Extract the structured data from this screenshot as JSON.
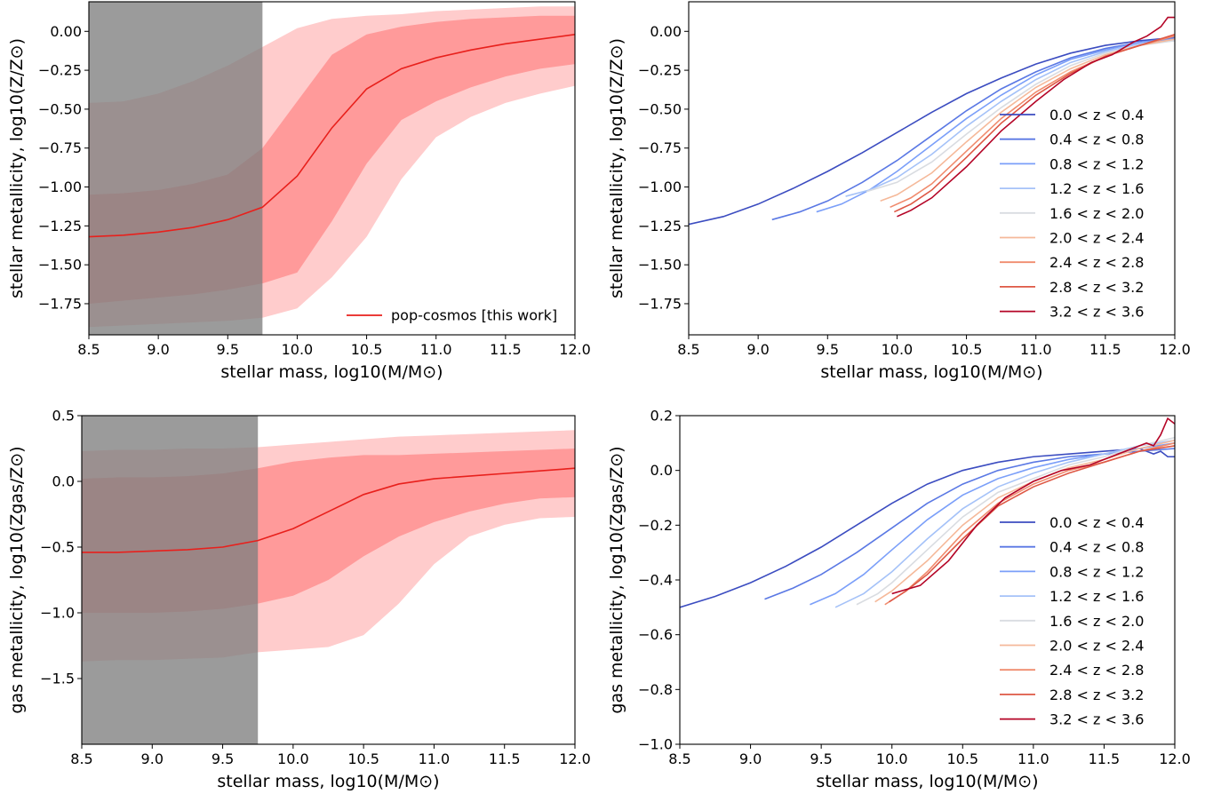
{
  "colors": {
    "main": "#e8201c",
    "band_inner": "#ff9a9a",
    "band_outer": "#ffcccc",
    "mask": "#7f7f7f",
    "bins": [
      "#3b4cc0",
      "#5a78e4",
      "#7b9ff9",
      "#a5c2f8",
      "#d9dce1",
      "#f5b99a",
      "#f08b6d",
      "#de5845",
      "#b40426"
    ]
  },
  "chart_data": [
    {
      "type": "area",
      "panel": "top-left",
      "xlabel": "stellar mass, log10(M/M⊙)",
      "ylabel": "stellar metallicity, log10(Z/Z⊙)",
      "xlim": [
        8.5,
        12.0
      ],
      "ylim": [
        -1.95,
        0.19
      ],
      "xticks": [
        8.5,
        9.0,
        9.5,
        10.0,
        10.5,
        11.0,
        11.5,
        12.0
      ],
      "yticks": [
        0.0,
        -0.25,
        -0.5,
        -0.75,
        -1.0,
        -1.25,
        -1.5,
        -1.75
      ],
      "tick_labels_x": [
        "8.5",
        "9.0",
        "9.5",
        "10.0",
        "10.5",
        "11.0",
        "11.5",
        "12.0"
      ],
      "tick_labels_y": [
        "0.00",
        "−0.25",
        "−0.50",
        "−0.75",
        "−1.00",
        "−1.25",
        "−1.50",
        "−1.75"
      ],
      "mask_range": [
        8.5,
        9.75
      ],
      "legend": {
        "position": "lower-right",
        "label": "pop-cosmos [this work]"
      },
      "x": [
        8.5,
        8.75,
        9.0,
        9.25,
        9.5,
        9.75,
        10.0,
        10.25,
        10.5,
        10.75,
        11.0,
        11.25,
        11.5,
        11.75,
        12.0
      ],
      "median": [
        -1.32,
        -1.31,
        -1.29,
        -1.26,
        -1.21,
        -1.13,
        -0.93,
        -0.62,
        -0.37,
        -0.24,
        -0.17,
        -0.12,
        -0.08,
        -0.05,
        -0.02
      ],
      "inner_upper": [
        -1.05,
        -1.04,
        -1.02,
        -0.98,
        -0.92,
        -0.75,
        -0.45,
        -0.15,
        -0.02,
        0.03,
        0.06,
        0.08,
        0.09,
        0.1,
        0.1
      ],
      "inner_lower": [
        -1.75,
        -1.73,
        -1.71,
        -1.69,
        -1.66,
        -1.62,
        -1.55,
        -1.22,
        -0.85,
        -0.57,
        -0.45,
        -0.36,
        -0.29,
        -0.24,
        -0.21
      ],
      "outer_upper": [
        -0.46,
        -0.45,
        -0.4,
        -0.32,
        -0.22,
        -0.1,
        0.02,
        0.08,
        0.1,
        0.11,
        0.13,
        0.14,
        0.15,
        0.16,
        0.16
      ],
      "outer_lower": [
        -1.9,
        -1.89,
        -1.88,
        -1.87,
        -1.86,
        -1.84,
        -1.78,
        -1.58,
        -1.32,
        -0.95,
        -0.68,
        -0.55,
        -0.46,
        -0.4,
        -0.35
      ]
    },
    {
      "type": "line",
      "panel": "top-right",
      "xlabel": "stellar mass, log10(M/M⊙)",
      "ylabel": "stellar metallicity, log10(Z/Z⊙)",
      "xlim": [
        8.5,
        12.0
      ],
      "ylim": [
        -1.95,
        0.19
      ],
      "xticks": [
        8.5,
        9.0,
        9.5,
        10.0,
        10.5,
        11.0,
        11.5,
        12.0
      ],
      "yticks": [
        0.0,
        -0.25,
        -0.5,
        -0.75,
        -1.0,
        -1.25,
        -1.5,
        -1.75
      ],
      "tick_labels_x": [
        "8.5",
        "9.0",
        "9.5",
        "10.0",
        "10.5",
        "11.0",
        "11.5",
        "12.0"
      ],
      "tick_labels_y": [
        "0.00",
        "−0.25",
        "−0.50",
        "−0.75",
        "−1.00",
        "−1.25",
        "−1.50",
        "−1.75"
      ],
      "legend": {
        "position": "center-right"
      },
      "series": [
        {
          "name": "0.0 < z < 0.4",
          "x": [
            8.5,
            8.75,
            9.0,
            9.25,
            9.5,
            9.75,
            10.0,
            10.25,
            10.5,
            10.75,
            11.0,
            11.25,
            11.5,
            11.75,
            12.0
          ],
          "y": [
            -1.24,
            -1.19,
            -1.11,
            -1.01,
            -0.9,
            -0.78,
            -0.65,
            -0.52,
            -0.4,
            -0.3,
            -0.21,
            -0.14,
            -0.09,
            -0.06,
            -0.04
          ]
        },
        {
          "name": "0.4 < z < 0.8",
          "x": [
            9.1,
            9.3,
            9.5,
            9.75,
            10.0,
            10.25,
            10.5,
            10.75,
            11.0,
            11.25,
            11.5,
            11.75,
            12.0
          ],
          "y": [
            -1.21,
            -1.16,
            -1.09,
            -0.97,
            -0.83,
            -0.67,
            -0.51,
            -0.37,
            -0.26,
            -0.17,
            -0.11,
            -0.07,
            -0.04
          ]
        },
        {
          "name": "0.8 < z < 1.2",
          "x": [
            9.42,
            9.6,
            9.8,
            10.0,
            10.25,
            10.5,
            10.75,
            11.0,
            11.25,
            11.5,
            11.75,
            12.0
          ],
          "y": [
            -1.16,
            -1.11,
            -1.02,
            -0.9,
            -0.73,
            -0.56,
            -0.41,
            -0.28,
            -0.18,
            -0.12,
            -0.07,
            -0.05
          ]
        },
        {
          "name": "1.2 < z < 1.6",
          "x": [
            9.63,
            9.8,
            10.0,
            10.25,
            10.5,
            10.75,
            11.0,
            11.25,
            11.5,
            11.75,
            12.0
          ],
          "y": [
            -1.06,
            -1.02,
            -0.94,
            -0.79,
            -0.61,
            -0.45,
            -0.31,
            -0.2,
            -0.13,
            -0.08,
            -0.06
          ]
        },
        {
          "name": "1.6 < z < 2.0",
          "x": [
            9.78,
            10.0,
            10.25,
            10.5,
            10.75,
            11.0,
            11.25,
            11.5,
            11.75,
            12.0
          ],
          "y": [
            -1.03,
            -0.97,
            -0.84,
            -0.66,
            -0.49,
            -0.34,
            -0.22,
            -0.14,
            -0.09,
            -0.06
          ]
        },
        {
          "name": "2.0 < z < 2.4",
          "x": [
            9.88,
            10.0,
            10.25,
            10.5,
            10.75,
            11.0,
            11.25,
            11.5,
            11.75,
            12.0
          ],
          "y": [
            -1.09,
            -1.05,
            -0.91,
            -0.71,
            -0.52,
            -0.36,
            -0.24,
            -0.15,
            -0.09,
            -0.05
          ]
        },
        {
          "name": "2.4 < z < 2.8",
          "x": [
            9.95,
            10.1,
            10.25,
            10.5,
            10.75,
            11.0,
            11.25,
            11.5,
            11.75,
            12.0
          ],
          "y": [
            -1.13,
            -1.07,
            -0.98,
            -0.77,
            -0.56,
            -0.39,
            -0.26,
            -0.16,
            -0.09,
            -0.03
          ]
        },
        {
          "name": "2.8 < z < 3.2",
          "x": [
            9.98,
            10.1,
            10.25,
            10.5,
            10.75,
            11.0,
            11.25,
            11.5,
            11.75,
            12.0
          ],
          "y": [
            -1.16,
            -1.11,
            -1.02,
            -0.81,
            -0.59,
            -0.41,
            -0.27,
            -0.16,
            -0.09,
            -0.02
          ]
        },
        {
          "name": "3.2 < z < 3.6",
          "x": [
            10.0,
            10.1,
            10.25,
            10.5,
            10.75,
            11.0,
            11.2,
            11.4,
            11.55,
            11.7,
            11.8,
            11.9,
            11.95,
            12.0
          ],
          "y": [
            -1.19,
            -1.15,
            -1.07,
            -0.87,
            -0.64,
            -0.45,
            -0.31,
            -0.2,
            -0.15,
            -0.07,
            -0.03,
            0.03,
            0.09,
            0.09
          ]
        }
      ]
    },
    {
      "type": "area",
      "panel": "bottom-left",
      "xlabel": "stellar mass, log10(M/M⊙)",
      "ylabel": "gas metallicity, log10(Zgas/Z⊙)",
      "xlim": [
        8.5,
        12.0
      ],
      "ylim": [
        -2.0,
        0.5
      ],
      "xticks": [
        8.5,
        9.0,
        9.5,
        10.0,
        10.5,
        11.0,
        11.5,
        12.0
      ],
      "yticks": [
        0.5,
        0.0,
        -0.5,
        -1.0,
        -1.5
      ],
      "tick_labels_x": [
        "8.5",
        "9.0",
        "9.5",
        "10.0",
        "10.5",
        "11.0",
        "11.5",
        "12.0"
      ],
      "tick_labels_y": [
        "0.5",
        "0.0",
        "−0.5",
        "−1.0",
        "−1.5"
      ],
      "mask_range": [
        8.5,
        9.75
      ],
      "x": [
        8.5,
        8.75,
        9.0,
        9.25,
        9.5,
        9.75,
        10.0,
        10.25,
        10.5,
        10.75,
        11.0,
        11.25,
        11.5,
        11.75,
        12.0
      ],
      "median": [
        -0.54,
        -0.54,
        -0.53,
        -0.52,
        -0.5,
        -0.45,
        -0.36,
        -0.23,
        -0.1,
        -0.02,
        0.02,
        0.04,
        0.06,
        0.08,
        0.1
      ],
      "inner_upper": [
        0.02,
        0.03,
        0.03,
        0.04,
        0.06,
        0.1,
        0.15,
        0.18,
        0.2,
        0.2,
        0.21,
        0.22,
        0.23,
        0.24,
        0.25
      ],
      "inner_lower": [
        -1.0,
        -1.0,
        -1.0,
        -0.99,
        -0.97,
        -0.93,
        -0.87,
        -0.75,
        -0.57,
        -0.42,
        -0.31,
        -0.23,
        -0.17,
        -0.13,
        -0.12
      ],
      "outer_upper": [
        0.23,
        0.24,
        0.24,
        0.25,
        0.25,
        0.26,
        0.28,
        0.3,
        0.32,
        0.34,
        0.35,
        0.36,
        0.37,
        0.38,
        0.39
      ],
      "outer_lower": [
        -1.37,
        -1.36,
        -1.36,
        -1.35,
        -1.34,
        -1.3,
        -1.28,
        -1.26,
        -1.17,
        -0.93,
        -0.63,
        -0.42,
        -0.33,
        -0.28,
        -0.27
      ]
    },
    {
      "type": "line",
      "panel": "bottom-right",
      "xlabel": "stellar mass, log10(M/M⊙)",
      "ylabel": "gas metallicity, log10(Zgas/Z⊙)",
      "xlim": [
        8.5,
        12.0
      ],
      "ylim": [
        -1.0,
        0.2
      ],
      "xticks": [
        8.5,
        9.0,
        9.5,
        10.0,
        10.5,
        11.0,
        11.5,
        12.0
      ],
      "yticks": [
        0.2,
        0.0,
        -0.2,
        -0.4,
        -0.6,
        -0.8,
        -1.0
      ],
      "tick_labels_x": [
        "8.5",
        "9.0",
        "9.5",
        "10.0",
        "10.5",
        "11.0",
        "11.5",
        "12.0"
      ],
      "tick_labels_y": [
        "0.2",
        "0.0",
        "−0.2",
        "−0.4",
        "−0.6",
        "−0.8",
        "−1.0"
      ],
      "legend": {
        "position": "lower-right"
      },
      "series": [
        {
          "name": "0.0 < z < 0.4",
          "x": [
            8.5,
            8.75,
            9.0,
            9.25,
            9.5,
            9.75,
            10.0,
            10.25,
            10.5,
            10.75,
            11.0,
            11.25,
            11.5,
            11.75,
            11.85,
            11.9,
            11.95,
            12.0
          ],
          "y": [
            -0.5,
            -0.46,
            -0.41,
            -0.35,
            -0.28,
            -0.2,
            -0.12,
            -0.05,
            0.0,
            0.03,
            0.05,
            0.06,
            0.07,
            0.08,
            0.06,
            0.07,
            0.05,
            0.05
          ]
        },
        {
          "name": "0.4 < z < 0.8",
          "x": [
            9.1,
            9.3,
            9.5,
            9.75,
            10.0,
            10.25,
            10.5,
            10.75,
            11.0,
            11.25,
            11.5,
            11.75,
            12.0
          ],
          "y": [
            -0.47,
            -0.43,
            -0.38,
            -0.3,
            -0.21,
            -0.12,
            -0.05,
            0.0,
            0.03,
            0.05,
            0.06,
            0.07,
            0.08
          ]
        },
        {
          "name": "0.8 < z < 1.2",
          "x": [
            9.42,
            9.6,
            9.8,
            10.0,
            10.25,
            10.5,
            10.75,
            11.0,
            11.25,
            11.5,
            11.75,
            12.0
          ],
          "y": [
            -0.49,
            -0.45,
            -0.38,
            -0.29,
            -0.18,
            -0.09,
            -0.03,
            0.01,
            0.04,
            0.06,
            0.08,
            0.1
          ]
        },
        {
          "name": "1.2 < z < 1.6",
          "x": [
            9.6,
            9.8,
            10.0,
            10.25,
            10.5,
            10.75,
            11.0,
            11.25,
            11.5,
            11.75,
            12.0
          ],
          "y": [
            -0.5,
            -0.45,
            -0.37,
            -0.25,
            -0.14,
            -0.06,
            -0.01,
            0.03,
            0.06,
            0.09,
            0.11
          ]
        },
        {
          "name": "1.6 < z < 2.0",
          "x": [
            9.75,
            9.9,
            10.0,
            10.25,
            10.5,
            10.75,
            11.0,
            11.25,
            11.5,
            11.75,
            12.0
          ],
          "y": [
            -0.49,
            -0.45,
            -0.41,
            -0.29,
            -0.17,
            -0.08,
            -0.03,
            0.02,
            0.05,
            0.09,
            0.12
          ]
        },
        {
          "name": "2.0 < z < 2.4",
          "x": [
            9.88,
            10.0,
            10.25,
            10.5,
            10.75,
            11.0,
            11.25,
            11.5,
            11.75,
            12.0
          ],
          "y": [
            -0.48,
            -0.44,
            -0.33,
            -0.2,
            -0.1,
            -0.04,
            0.01,
            0.04,
            0.08,
            0.11
          ]
        },
        {
          "name": "2.4 < z < 2.8",
          "x": [
            9.95,
            10.1,
            10.25,
            10.5,
            10.75,
            11.0,
            11.25,
            11.5,
            11.75,
            12.0
          ],
          "y": [
            -0.49,
            -0.44,
            -0.37,
            -0.23,
            -0.12,
            -0.05,
            0.0,
            0.03,
            0.07,
            0.1
          ]
        },
        {
          "name": "2.8 < z < 3.2",
          "x": [
            9.98,
            10.1,
            10.25,
            10.5,
            10.75,
            11.0,
            11.25,
            11.5,
            11.75,
            12.0
          ],
          "y": [
            -0.48,
            -0.44,
            -0.38,
            -0.25,
            -0.13,
            -0.06,
            -0.01,
            0.03,
            0.07,
            0.09
          ]
        },
        {
          "name": "3.2 < z < 3.6",
          "x": [
            10.0,
            10.2,
            10.4,
            10.6,
            10.8,
            11.0,
            11.2,
            11.4,
            11.6,
            11.7,
            11.8,
            11.85,
            11.9,
            11.95,
            12.0
          ],
          "y": [
            -0.45,
            -0.42,
            -0.33,
            -0.2,
            -0.1,
            -0.04,
            0.0,
            0.02,
            0.06,
            0.08,
            0.1,
            0.09,
            0.13,
            0.19,
            0.17
          ]
        }
      ]
    }
  ]
}
